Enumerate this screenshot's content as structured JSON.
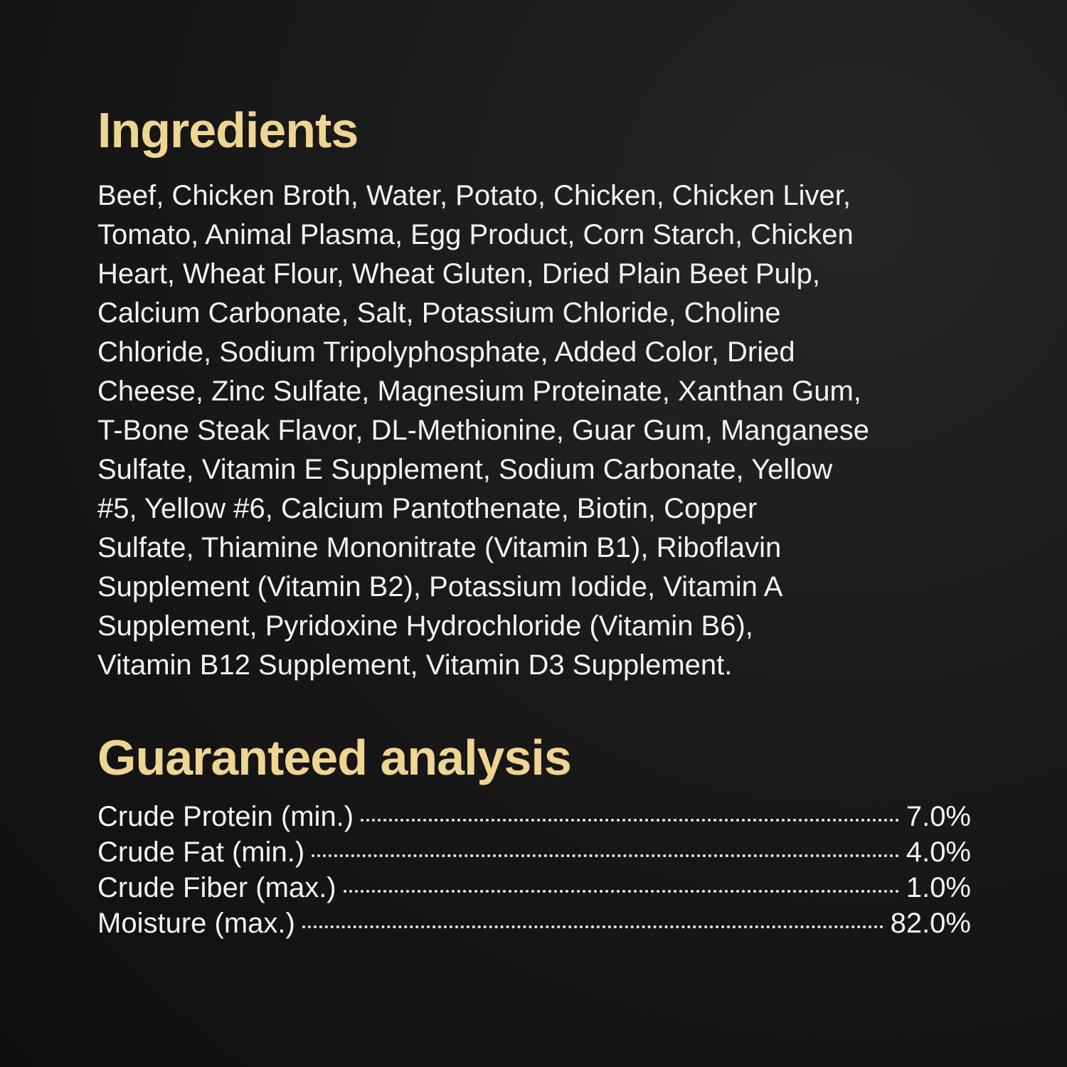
{
  "ingredients": {
    "title": "Ingredients",
    "lines": [
      "Beef, Chicken Broth, Water, Potato, Chicken, Chicken Liver,",
      "Tomato, Animal Plasma, Egg Product, Corn Starch, Chicken",
      "Heart, Wheat Flour, Wheat Gluten, Dried Plain Beet Pulp,",
      "Calcium Carbonate, Salt, Potassium Chloride, Choline",
      "Chloride, Sodium Tripolyphosphate, Added Color, Dried",
      "Cheese, Zinc Sulfate, Magnesium Proteinate, Xanthan Gum,",
      "T-Bone Steak Flavor, DL-Methionine, Guar Gum, Manganese",
      "Sulfate, Vitamin E Supplement, Sodium Carbonate, Yellow",
      "#5, Yellow #6, Calcium Pantothenate, Biotin, Copper",
      "Sulfate, Thiamine Mononitrate (Vitamin B1), Riboflavin",
      "Supplement (Vitamin B2), Potassium Iodide, Vitamin A",
      "Supplement, Pyridoxine Hydrochloride (Vitamin B6),",
      "Vitamin B12 Supplement, Vitamin D3 Supplement."
    ]
  },
  "analysis": {
    "title": "Guaranteed analysis",
    "rows": [
      {
        "label": "Crude Protein (min.)",
        "value": "7.0%"
      },
      {
        "label": "Crude Fat (min.)",
        "value": "4.0%"
      },
      {
        "label": "Crude Fiber (max.)",
        "value": "1.0%"
      },
      {
        "label": "Moisture (max.)",
        "value": "82.0%"
      }
    ]
  },
  "colors": {
    "heading": "#efd592",
    "text": "#f4f4f4",
    "background": "#141414"
  }
}
